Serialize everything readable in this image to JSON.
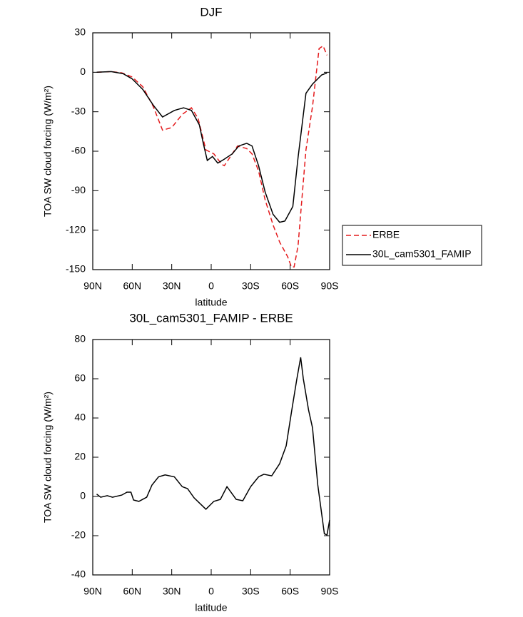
{
  "chart_data": [
    {
      "type": "line",
      "title": "DJF",
      "xlabel": "latitude",
      "ylabel": "TOA SW cloud forcing (W/m²)",
      "xlim": [
        90,
        -90
      ],
      "xticks": [
        {
          "value": 90,
          "label": "90N"
        },
        {
          "value": 60,
          "label": "60N"
        },
        {
          "value": 30,
          "label": "30N"
        },
        0,
        {
          "value": -30,
          "label": "30S"
        },
        {
          "value": -60,
          "label": "60S"
        },
        {
          "value": -90,
          "label": "90S"
        }
      ],
      "ylim": [
        -150,
        30
      ],
      "yticks": [
        -150,
        -120,
        -90,
        -60,
        -30,
        0,
        30
      ],
      "legend": "right",
      "series": [
        {
          "name": "ERBE",
          "color": "#e41a1c",
          "style": "dashed",
          "x": [
            87,
            76,
            68,
            60,
            52,
            44,
            37,
            30,
            22,
            15,
            10,
            4,
            2,
            -2,
            -8,
            -10,
            -14,
            -20,
            -27,
            -31,
            -36,
            -41,
            -47,
            -52,
            -58,
            -61,
            -63,
            -66,
            -72,
            -77,
            -82,
            -85,
            -88
          ],
          "values": [
            0,
            0.5,
            -0.4,
            -3.6,
            -11,
            -26,
            -44,
            -42,
            -32,
            -27,
            -35,
            -59,
            -60,
            -62,
            -70,
            -71,
            -65,
            -56,
            -58,
            -62,
            -75,
            -97,
            -116,
            -129,
            -140,
            -148,
            -148,
            -132,
            -59,
            -26,
            18,
            20,
            13
          ]
        },
        {
          "name": "30L_cam5301_FAMIP",
          "color": "#000000",
          "style": "solid",
          "x": [
            87,
            76,
            67,
            60,
            52,
            44,
            37,
            28,
            21,
            15,
            9,
            6,
            3,
            -1,
            -5,
            -10,
            -16,
            -21,
            -27,
            -31,
            -36,
            -41,
            -47,
            -52,
            -56,
            -62,
            -66,
            -72,
            -77,
            -84,
            -88
          ],
          "values": [
            0,
            0.5,
            -1,
            -5,
            -13,
            -25,
            -34,
            -29,
            -27,
            -29,
            -40,
            -54,
            -67,
            -64,
            -69,
            -66,
            -62,
            -56,
            -54,
            -56,
            -71,
            -91,
            -108,
            -114,
            -113,
            -102,
            -65,
            -16,
            -9,
            -2,
            -0.5
          ]
        }
      ]
    },
    {
      "type": "line",
      "title": "30L_cam5301_FAMIP - ERBE",
      "xlabel": "latitude",
      "ylabel": "TOA SW cloud forcing (W/m²)",
      "xlim": [
        90,
        -90
      ],
      "xticks": [
        {
          "value": 90,
          "label": "90N"
        },
        {
          "value": 60,
          "label": "60N"
        },
        {
          "value": 30,
          "label": "30N"
        },
        0,
        {
          "value": -30,
          "label": "30S"
        },
        {
          "value": -60,
          "label": "60S"
        },
        {
          "value": -90,
          "label": "90S"
        }
      ],
      "ylim": [
        -40,
        80
      ],
      "yticks": [
        -40,
        -20,
        0,
        20,
        40,
        60,
        80
      ],
      "color": "#000000",
      "x": [
        87,
        84,
        79,
        75,
        68,
        64,
        61,
        59,
        55,
        49,
        45,
        40,
        35,
        28,
        22,
        18,
        13,
        9,
        4,
        -2,
        -7,
        -12,
        -19,
        -24,
        -30,
        -36,
        -40,
        -46,
        -52,
        -57,
        -61,
        -65,
        -68,
        -70,
        -74,
        -77,
        -81,
        -86,
        -88,
        -90
      ],
      "values": [
        1.2,
        -0.4,
        0.4,
        -0.4,
        0.7,
        2.2,
        2.2,
        -1.8,
        -2.5,
        -0.4,
        5.8,
        10,
        11,
        10,
        5,
        4,
        -0.7,
        -3.3,
        -6.5,
        -2.5,
        -1.5,
        5,
        -1.5,
        -2.2,
        5,
        10,
        11.3,
        10.5,
        16.7,
        25.8,
        43,
        59.6,
        70.9,
        60,
        44,
        35,
        5.8,
        -19,
        -19.6,
        -12
      ]
    }
  ]
}
